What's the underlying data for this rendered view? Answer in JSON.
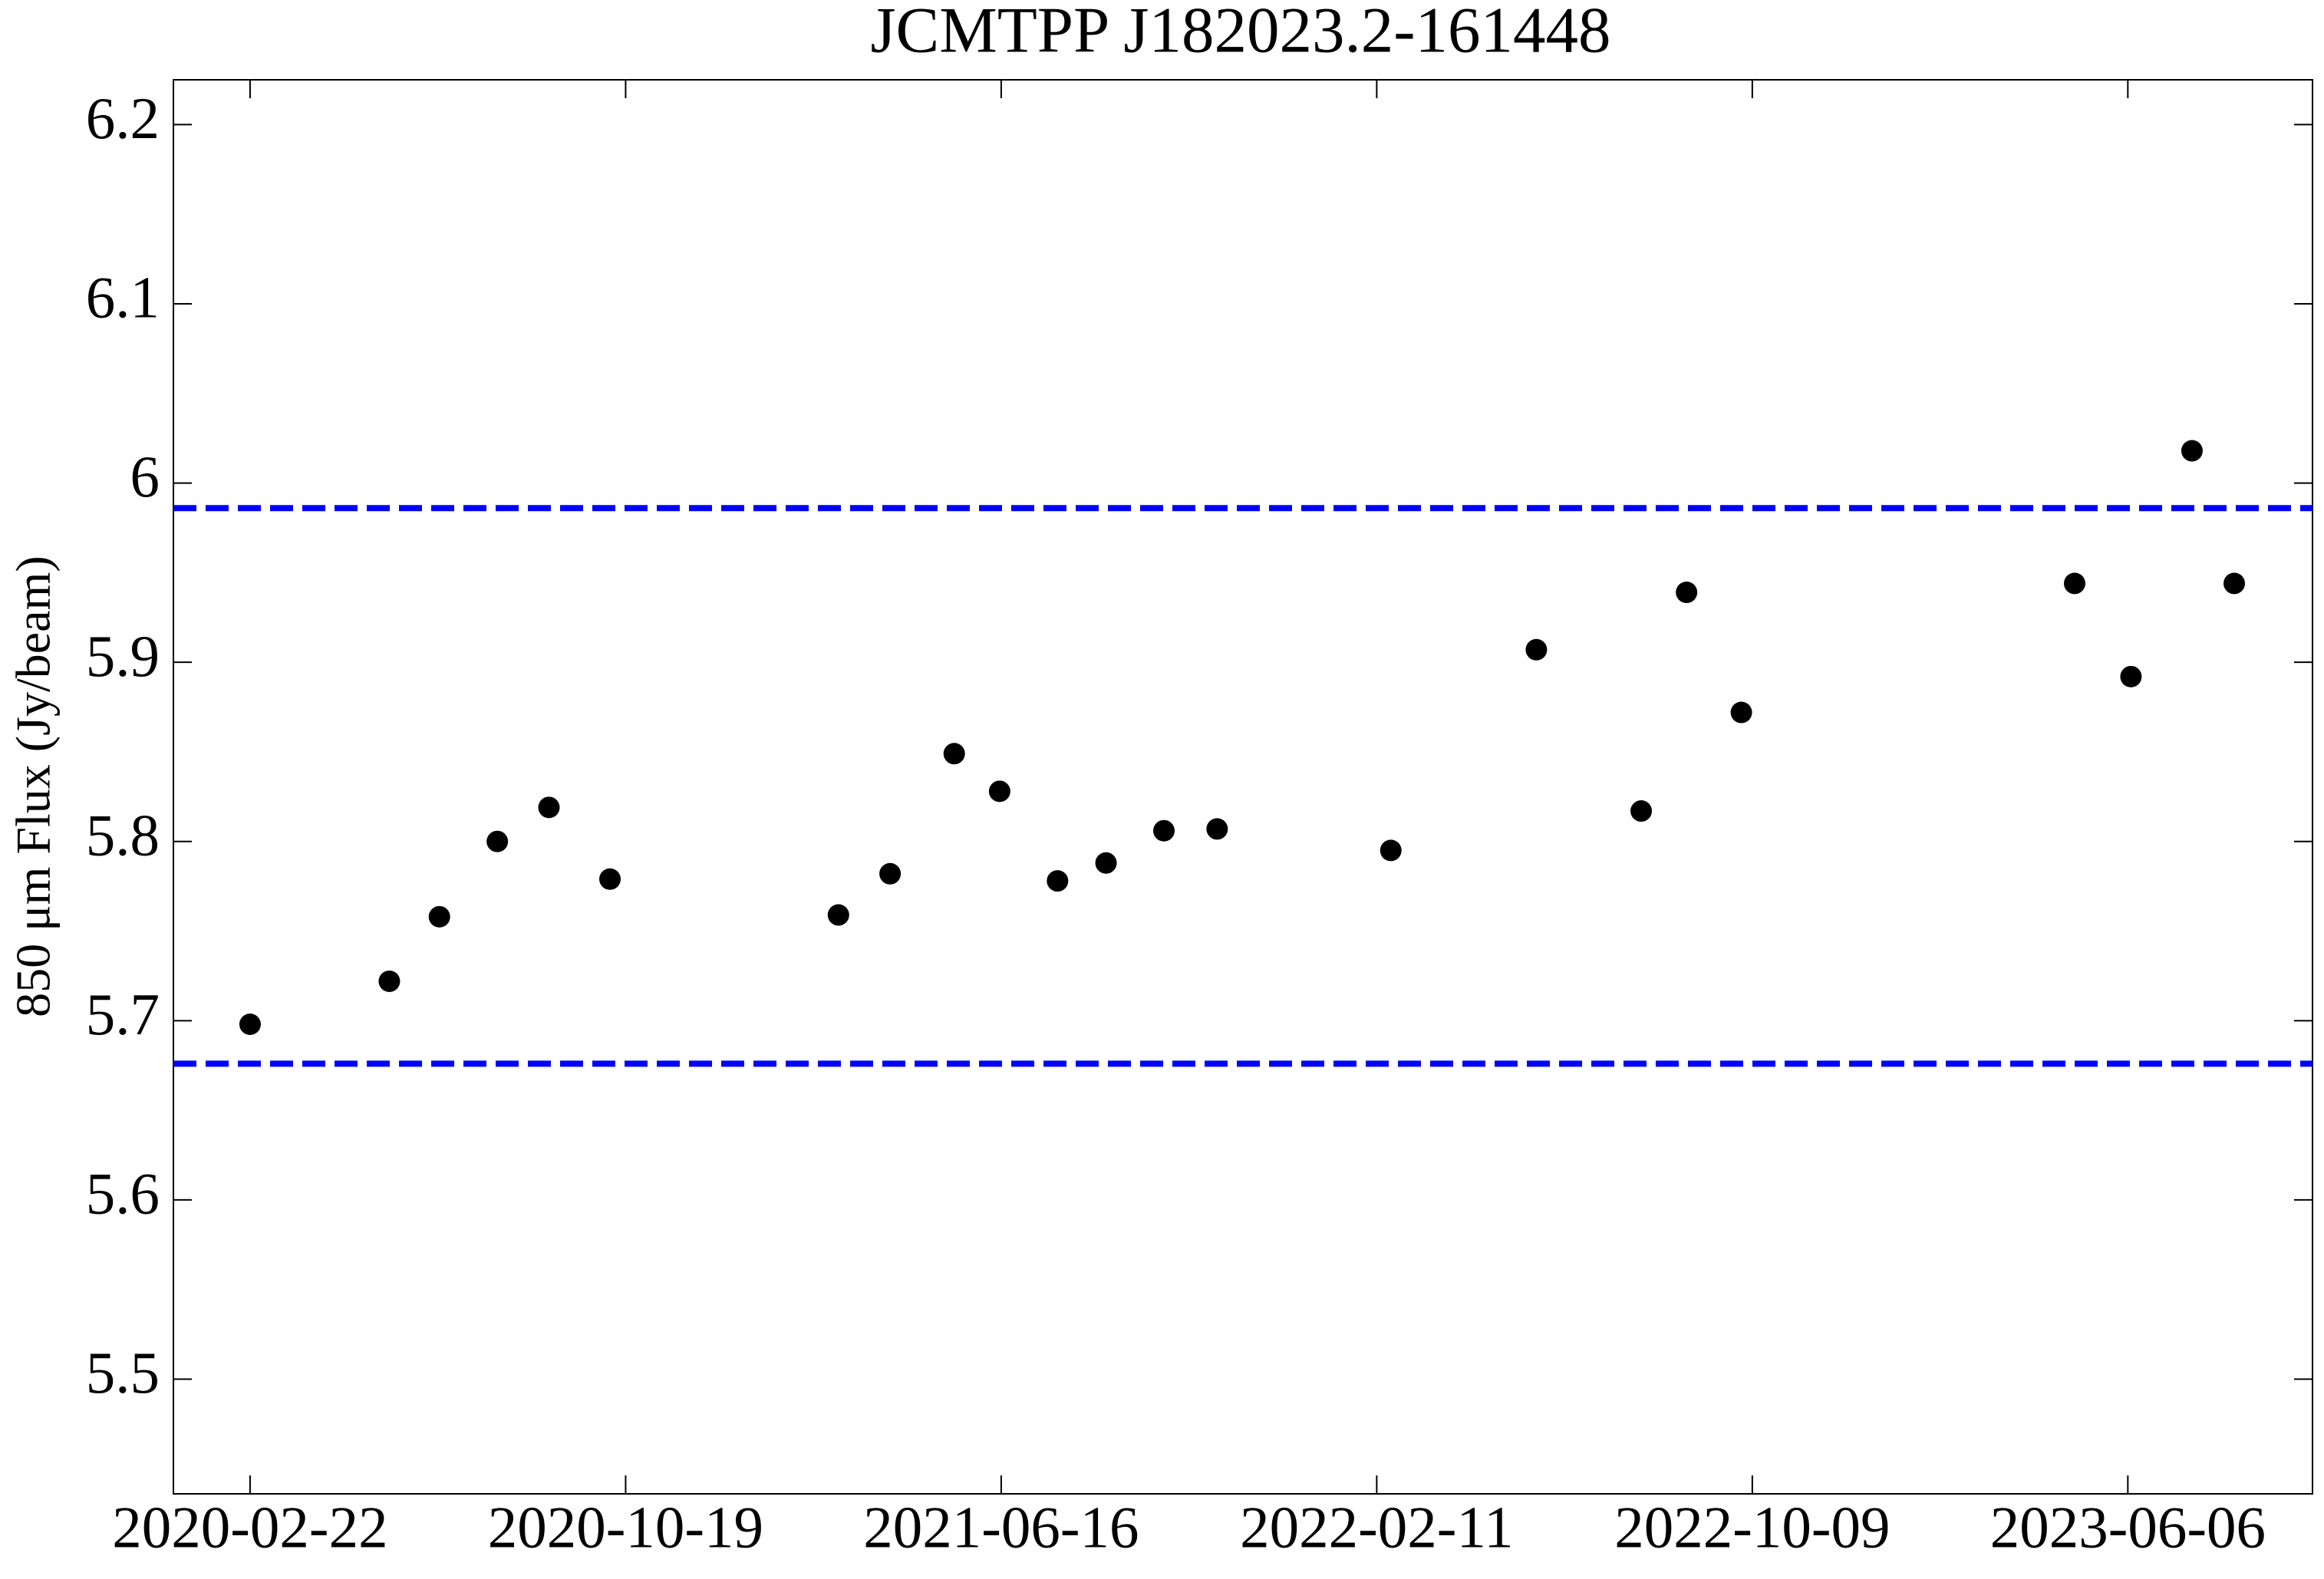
{
  "chart_data": {
    "type": "scatter",
    "title": "JCMTPP J182023.2-161448",
    "y_label": "850 μm Flux (Jy/beam)",
    "x": [
      "2020-02-22",
      "2020-05-21",
      "2020-06-22",
      "2020-07-29",
      "2020-08-31",
      "2020-10-09",
      "2021-03-04",
      "2021-04-06",
      "2021-05-17",
      "2021-06-15",
      "2021-07-22",
      "2021-08-22",
      "2021-09-28",
      "2021-11-01",
      "2022-02-20",
      "2022-05-24",
      "2022-07-30",
      "2022-08-28",
      "2022-10-02",
      "2023-05-03",
      "2023-06-08",
      "2023-07-17",
      "2023-08-13"
    ],
    "series": [
      {
        "color": "#000000",
        "values": [
          5.698,
          5.722,
          5.758,
          5.8,
          5.819,
          5.779,
          5.759,
          5.782,
          5.849,
          5.828,
          5.778,
          5.788,
          5.806,
          5.807,
          5.795,
          5.907,
          5.817,
          5.939,
          5.872,
          5.944,
          5.892,
          6.018,
          5.944
        ]
      }
    ],
    "hlines": {
      "values": [
        5.986,
        5.676
      ],
      "color": "#0000ff",
      "style": "dashed"
    },
    "xlim": [
      "2020-01-04",
      "2023-10-02"
    ],
    "xticks": [
      "2020-02-22",
      "2020-10-19",
      "2021-06-16",
      "2022-02-11",
      "2022-10-09",
      "2023-06-06"
    ],
    "ylim": [
      5.436,
      6.225
    ],
    "yticks": [
      5.5,
      5.6,
      5.7,
      5.8,
      5.9,
      6.0,
      6.1,
      6.2
    ]
  }
}
